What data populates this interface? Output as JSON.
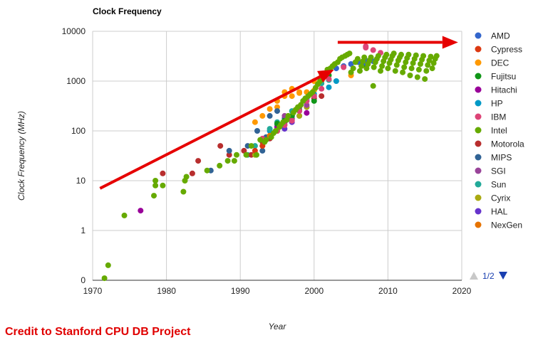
{
  "chart_data": {
    "type": "scatter",
    "title": "Clock Frequency",
    "xlabel": "Year",
    "ylabel": "Clock Frequency (MHz)",
    "xlim": [
      1970,
      2020
    ],
    "x_ticks": [
      "1970",
      "1980",
      "1990",
      "2000",
      "2010",
      "2020"
    ],
    "y_scale": "log",
    "y_ticks": [
      "0",
      "1",
      "10",
      "100",
      "1000",
      "10000"
    ],
    "grid": true,
    "legend_position": "right",
    "series": [
      {
        "name": "AMD",
        "color": "#3366cc",
        "points": [
          [
            2003,
            1800
          ],
          [
            2004,
            2000
          ],
          [
            2005,
            2200
          ],
          [
            2006,
            2400
          ],
          [
            2007,
            2600
          ],
          [
            2007,
            2300
          ],
          [
            2008,
            2500
          ]
        ]
      },
      {
        "name": "Cypress",
        "color": "#dc3912",
        "points": [
          [
            1992,
            40
          ],
          [
            1993,
            50
          ]
        ]
      },
      {
        "name": "DEC",
        "color": "#ff9900",
        "points": [
          [
            1992,
            150
          ],
          [
            1993,
            200
          ],
          [
            1994,
            275
          ],
          [
            1995,
            300
          ],
          [
            1995,
            400
          ],
          [
            1996,
            500
          ],
          [
            1996,
            600
          ],
          [
            1997,
            500
          ],
          [
            1997,
            700
          ],
          [
            1998,
            575
          ],
          [
            1998,
            600
          ],
          [
            1999,
            600
          ],
          [
            2000,
            650
          ],
          [
            2000,
            1000
          ],
          [
            2001,
            1000
          ],
          [
            2001,
            1250
          ],
          [
            2005,
            1300
          ]
        ]
      },
      {
        "name": "Fujitsu",
        "color": "#109618",
        "points": [
          [
            1995,
            140
          ],
          [
            1996,
            160
          ],
          [
            1997,
            200
          ],
          [
            1998,
            260
          ],
          [
            2000,
            400
          ],
          [
            2002,
            1300
          ],
          [
            2007,
            2000
          ]
        ]
      },
      {
        "name": "Hitachi",
        "color": "#990099",
        "points": [
          [
            1976.5,
            2.5
          ],
          [
            1995,
            120
          ],
          [
            1996,
            150
          ],
          [
            1997,
            200
          ],
          [
            1999,
            230
          ]
        ]
      },
      {
        "name": "HP",
        "color": "#0099c6",
        "points": [
          [
            1994,
            100
          ],
          [
            1995,
            120
          ],
          [
            1996,
            160
          ],
          [
            1997,
            180
          ],
          [
            1998,
            200
          ],
          [
            1999,
            440
          ],
          [
            2000,
            550
          ],
          [
            2002,
            750
          ],
          [
            2003,
            1000
          ]
        ]
      },
      {
        "name": "IBM",
        "color": "#dd4477",
        "points": [
          [
            1993,
            70
          ],
          [
            1995,
            100
          ],
          [
            1996,
            130
          ],
          [
            1997,
            160
          ],
          [
            1998,
            250
          ],
          [
            1999,
            400
          ],
          [
            2000,
            500
          ],
          [
            2001,
            700
          ],
          [
            2002,
            1100
          ],
          [
            2004,
            1900
          ],
          [
            2007,
            5000
          ],
          [
            2007,
            4700
          ],
          [
            2008,
            4200
          ],
          [
            2009,
            3700
          ]
        ]
      },
      {
        "name": "Intel",
        "color": "#66aa00",
        "points": [
          [
            1971.6,
            0.11
          ],
          [
            1972.1,
            0.2
          ],
          [
            1974.3,
            2
          ],
          [
            1978.3,
            5
          ],
          [
            1978.5,
            8
          ],
          [
            1978.5,
            10
          ],
          [
            1979.5,
            8
          ],
          [
            1982.3,
            6
          ],
          [
            1982.5,
            10
          ],
          [
            1982.7,
            12
          ],
          [
            1985.5,
            16
          ],
          [
            1987.2,
            20
          ],
          [
            1988.3,
            25
          ],
          [
            1989.2,
            25
          ],
          [
            1989.5,
            33
          ],
          [
            1990.8,
            33
          ],
          [
            1991.5,
            50
          ],
          [
            1992.2,
            33
          ],
          [
            1992.7,
            66
          ],
          [
            1993.3,
            60
          ],
          [
            1993.5,
            66
          ],
          [
            1994.2,
            75
          ],
          [
            1994.5,
            90
          ],
          [
            1994.8,
            100
          ],
          [
            1995.3,
            120
          ],
          [
            1995.5,
            133
          ],
          [
            1995.8,
            150
          ],
          [
            1996.3,
            166
          ],
          [
            1996.5,
            200
          ],
          [
            1997.2,
            233
          ],
          [
            1997.5,
            266
          ],
          [
            1997.8,
            300
          ],
          [
            1998.2,
            333
          ],
          [
            1998.5,
            400
          ],
          [
            1998.8,
            450
          ],
          [
            1999.2,
            500
          ],
          [
            1999.5,
            550
          ],
          [
            1999.8,
            600
          ],
          [
            2000.2,
            733
          ],
          [
            2000.5,
            866
          ],
          [
            2000.8,
            1000
          ],
          [
            2001.2,
            1300
          ],
          [
            2001.5,
            1400
          ],
          [
            2001.8,
            1700
          ],
          [
            2002.2,
            1800
          ],
          [
            2002.5,
            2000
          ],
          [
            2002.8,
            2200
          ],
          [
            2003.2,
            2400
          ],
          [
            2003.5,
            2800
          ],
          [
            2003.8,
            3000
          ],
          [
            2004.2,
            3200
          ],
          [
            2004.5,
            3400
          ],
          [
            2004.8,
            3600
          ],
          [
            2005,
            1500
          ],
          [
            2005.3,
            1800
          ],
          [
            2005.6,
            2400
          ],
          [
            2005.9,
            2800
          ],
          [
            2006.2,
            1600
          ],
          [
            2006.4,
            2000
          ],
          [
            2006.6,
            2500
          ],
          [
            2006.8,
            3000
          ],
          [
            2007.1,
            1800
          ],
          [
            2007.3,
            2200
          ],
          [
            2007.5,
            2600
          ],
          [
            2007.7,
            3000
          ],
          [
            2008,
            800
          ],
          [
            2008.1,
            1900
          ],
          [
            2008.3,
            2400
          ],
          [
            2008.5,
            2800
          ],
          [
            2008.7,
            3200
          ],
          [
            2009,
            1600
          ],
          [
            2009.2,
            2000
          ],
          [
            2009.4,
            2500
          ],
          [
            2009.6,
            3000
          ],
          [
            2009.8,
            3400
          ],
          [
            2010,
            1800
          ],
          [
            2010.2,
            2300
          ],
          [
            2010.4,
            2700
          ],
          [
            2010.6,
            3200
          ],
          [
            2010.8,
            3600
          ],
          [
            2011,
            1600
          ],
          [
            2011.2,
            2100
          ],
          [
            2011.4,
            2600
          ],
          [
            2011.6,
            3000
          ],
          [
            2011.8,
            3400
          ],
          [
            2012,
            1500
          ],
          [
            2012.2,
            1900
          ],
          [
            2012.4,
            2400
          ],
          [
            2012.6,
            2900
          ],
          [
            2012.8,
            3400
          ],
          [
            2013,
            1300
          ],
          [
            2013.2,
            1800
          ],
          [
            2013.4,
            2300
          ],
          [
            2013.6,
            2800
          ],
          [
            2013.8,
            3300
          ],
          [
            2014,
            1200
          ],
          [
            2014.2,
            1700
          ],
          [
            2014.4,
            2200
          ],
          [
            2014.6,
            2700
          ],
          [
            2014.8,
            3200
          ],
          [
            2015,
            1100
          ],
          [
            2015.2,
            1600
          ],
          [
            2015.4,
            2100
          ],
          [
            2015.6,
            2600
          ],
          [
            2015.8,
            3100
          ],
          [
            2016,
            1800
          ],
          [
            2016.2,
            2300
          ],
          [
            2016.4,
            2800
          ],
          [
            2016.6,
            3200
          ]
        ]
      },
      {
        "name": "Motorola",
        "color": "#b82e2e",
        "points": [
          [
            1979.5,
            14
          ],
          [
            1983.5,
            14
          ],
          [
            1984.3,
            25
          ],
          [
            1987.3,
            50
          ],
          [
            1988.5,
            33
          ],
          [
            1990.5,
            40
          ],
          [
            1991.5,
            33
          ],
          [
            1993,
            60
          ],
          [
            1994,
            70
          ],
          [
            1995,
            100
          ],
          [
            1996,
            150
          ],
          [
            1998,
            300
          ],
          [
            2000,
            450
          ],
          [
            2001,
            500
          ]
        ]
      },
      {
        "name": "MIPS",
        "color": "#316395",
        "points": [
          [
            1986,
            16
          ],
          [
            1988.5,
            40
          ],
          [
            1991,
            50
          ],
          [
            1992.3,
            100
          ],
          [
            1993,
            40
          ],
          [
            1993.5,
            75
          ],
          [
            1994,
            200
          ],
          [
            1995,
            133
          ],
          [
            1995,
            250
          ],
          [
            1996,
            180
          ],
          [
            1997,
            200
          ],
          [
            1998,
            250
          ],
          [
            1999,
            300
          ]
        ]
      },
      {
        "name": "SGI",
        "color": "#994499",
        "points": [
          [
            1996,
            200
          ],
          [
            1997,
            175
          ],
          [
            1998,
            300
          ],
          [
            1999,
            330
          ]
        ]
      },
      {
        "name": "Sun",
        "color": "#22aa99",
        "points": [
          [
            1991,
            33
          ],
          [
            1992,
            50
          ],
          [
            1993,
            60
          ],
          [
            1994,
            110
          ],
          [
            1995,
            150
          ],
          [
            1996,
            167
          ],
          [
            1997,
            250
          ],
          [
            1998,
            300
          ],
          [
            1999,
            400
          ],
          [
            2000,
            500
          ],
          [
            2001,
            900
          ],
          [
            2002,
            1050
          ]
        ]
      },
      {
        "name": "Cyrix",
        "color": "#aaaa11",
        "points": [
          [
            1992,
            33
          ],
          [
            1993,
            50
          ],
          [
            1994,
            80
          ],
          [
            1995,
            100
          ],
          [
            1996,
            133
          ],
          [
            1997,
            166
          ],
          [
            1998,
            200
          ],
          [
            1999,
            300
          ]
        ]
      },
      {
        "name": "HAL",
        "color": "#6633cc",
        "points": [
          [
            1995,
            100
          ],
          [
            1996,
            110
          ],
          [
            1997,
            150
          ]
        ]
      },
      {
        "name": "NexGen",
        "color": "#e67300",
        "points": [
          [
            1994,
            80
          ],
          [
            1995,
            100
          ]
        ]
      }
    ],
    "annotations": {
      "trend_arrow_up": {
        "from": [
          1971,
          7
        ],
        "to": [
          2002.7,
          1700
        ],
        "color": "#e60000"
      },
      "trend_arrow_flat": {
        "from": [
          2003.2,
          6000
        ],
        "to": [
          2019.5,
          6000
        ],
        "color": "#e60000"
      }
    }
  },
  "legend": {
    "pager": "1/2",
    "up_arrow_color": "#c8c8c8",
    "down_arrow_color": "#1a3fb0"
  },
  "credit": "Credit to Stanford CPU DB Project"
}
